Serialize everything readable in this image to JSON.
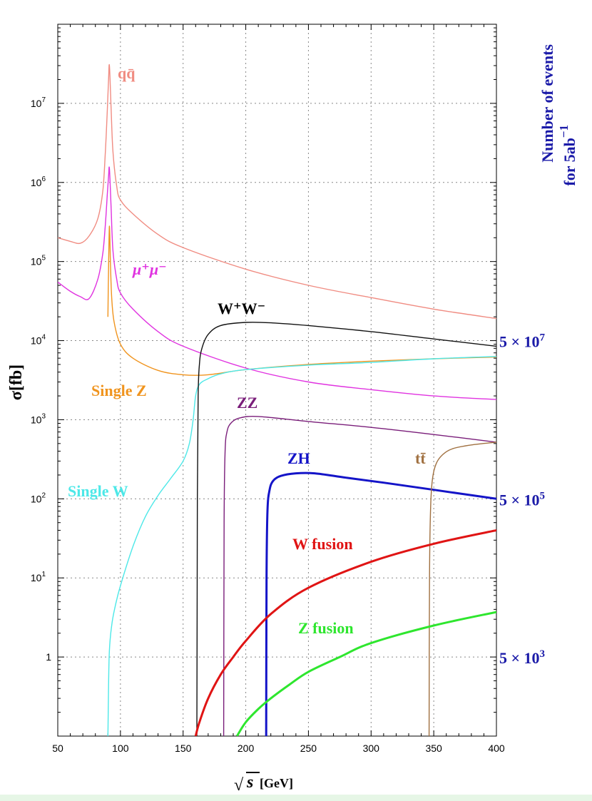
{
  "chart_data": {
    "type": "line",
    "x_scale": "linear",
    "y_scale": "log",
    "xlim": [
      50,
      400
    ],
    "ylim": [
      0.1,
      100000000
    ],
    "x_ticks": [
      50,
      100,
      150,
      200,
      250,
      300,
      350,
      400
    ],
    "x_tick_labels": [
      "50",
      "100",
      "150",
      "200",
      "250",
      "300",
      "350",
      "400"
    ],
    "y_ticks": [
      1,
      10,
      100,
      1000,
      10000,
      100000,
      1000000,
      10000000
    ],
    "y_tick_labels": [
      {
        "base": "1",
        "exp": ""
      },
      {
        "base": "10",
        "exp": "1"
      },
      {
        "base": "10",
        "exp": "2"
      },
      {
        "base": "10",
        "exp": "3"
      },
      {
        "base": "10",
        "exp": "4"
      },
      {
        "base": "10",
        "exp": "5"
      },
      {
        "base": "10",
        "exp": "6"
      },
      {
        "base": "10",
        "exp": "7"
      }
    ],
    "ylabel": "σ[fb]",
    "xlabel": {
      "radical": "√",
      "var": "s",
      "unit": " [GeV]"
    },
    "right_axis": {
      "title_line1": "Number of events",
      "title_line2": "for 5ab",
      "title_exp": "−1",
      "color": "#1a1aa8",
      "ticks": [
        {
          "y": 10000,
          "base": "5 × 10",
          "exp": "7"
        },
        {
          "y": 100,
          "base": "5 × 10",
          "exp": "5"
        },
        {
          "y": 1,
          "base": "5 × 10",
          "exp": "3"
        }
      ]
    },
    "grid": true,
    "series": [
      {
        "name": "qqbar",
        "label": "qq̄",
        "color": "#f08c82",
        "width": 1.4,
        "x": [
          50,
          60,
          68,
          75,
          82,
          86,
          88,
          89.5,
          90.5,
          91.2,
          92.5,
          94,
          97,
          100,
          110,
          130,
          150,
          200,
          250,
          300,
          350,
          400
        ],
        "y": [
          200000,
          180000,
          170000,
          210000,
          350000,
          800000,
          2500000,
          8000000,
          20000000,
          30000000,
          9000000,
          2500000,
          900000,
          600000,
          400000,
          220000,
          150000,
          80000,
          50000,
          35000,
          25000,
          19000
        ]
      },
      {
        "name": "mumu",
        "label": "μ⁺μ⁻",
        "color": "#e033e0",
        "width": 1.4,
        "x": [
          50,
          60,
          68,
          75,
          82,
          86,
          88,
          89.5,
          90.5,
          91.2,
          92.5,
          94,
          97,
          100,
          110,
          130,
          150,
          200,
          250,
          300,
          350,
          400
        ],
        "y": [
          55000,
          42000,
          36000,
          34000,
          60000,
          130000,
          300000,
          700000,
          1200000,
          1500000,
          500000,
          140000,
          60000,
          40000,
          25000,
          13000,
          8500,
          4500,
          3000,
          2400,
          2000,
          1800
        ]
      },
      {
        "name": "singleZ",
        "label": "Single Z",
        "color": "#f0941e",
        "width": 1.4,
        "x": [
          90,
          90.5,
          91.2,
          92,
          93,
          95,
          100,
          110,
          130,
          150,
          170,
          200,
          250,
          300,
          350,
          400
        ],
        "y": [
          20000,
          80000,
          280000,
          100000,
          35000,
          17000,
          9000,
          6000,
          4200,
          3700,
          3700,
          4300,
          5000,
          5500,
          5900,
          6200
        ]
      },
      {
        "name": "singleW",
        "label": "Single W",
        "color": "#4de8e8",
        "width": 1.4,
        "x": [
          90,
          91,
          93,
          96,
          100,
          110,
          120,
          130,
          140,
          150,
          155,
          158,
          160,
          163,
          170,
          180,
          200,
          250,
          300,
          350,
          400
        ],
        "y": [
          0.1,
          1,
          2.5,
          4.5,
          8,
          25,
          60,
          110,
          180,
          300,
          500,
          1000,
          2000,
          2800,
          3300,
          3800,
          4300,
          4900,
          5300,
          5900,
          6300
        ]
      },
      {
        "name": "WW",
        "label": "W⁺W⁻",
        "color": "#111111",
        "width": 1.4,
        "x": [
          161,
          161.4,
          162,
          163,
          165,
          170,
          180,
          200,
          220,
          250,
          300,
          350,
          400
        ],
        "y": [
          0.1,
          100,
          2000,
          5000,
          8000,
          12000,
          15500,
          17000,
          16800,
          15500,
          13000,
          10500,
          8500
        ]
      },
      {
        "name": "ZZ",
        "label": "ZZ",
        "color": "#7a1e7a",
        "width": 1.4,
        "x": [
          182.4,
          182.7,
          183.5,
          185,
          188,
          195,
          210,
          250,
          300,
          350,
          400
        ],
        "y": [
          0.1,
          50,
          400,
          700,
          900,
          1050,
          1100,
          950,
          800,
          650,
          520
        ]
      },
      {
        "name": "ZH",
        "label": "ZH",
        "color": "#1414c8",
        "width": 3,
        "x": [
          216.3,
          216.6,
          217.3,
          219,
          222,
          228,
          240,
          255,
          280,
          310,
          350,
          400
        ],
        "y": [
          0.1,
          10,
          70,
          130,
          170,
          195,
          210,
          210,
          185,
          160,
          130,
          100
        ]
      },
      {
        "name": "tt",
        "label": "tt̄",
        "color": "#a07040",
        "width": 1.4,
        "x": [
          346.3,
          346.6,
          347.5,
          349,
          352,
          357,
          365,
          380,
          400
        ],
        "y": [
          0.1,
          10,
          80,
          180,
          280,
          360,
          430,
          480,
          520
        ]
      },
      {
        "name": "Wfusion",
        "label": "W fusion",
        "color": "#e01414",
        "width": 3,
        "x": [
          160,
          163,
          170,
          180,
          190,
          200,
          220,
          250,
          300,
          350,
          400
        ],
        "y": [
          0.1,
          0.15,
          0.3,
          0.6,
          1.0,
          1.6,
          3.5,
          7.5,
          16,
          27,
          40
        ]
      },
      {
        "name": "Zfusion",
        "label": "Z fusion",
        "color": "#2ee62e",
        "width": 3,
        "x": [
          193,
          200,
          210,
          220,
          235,
          250,
          275,
          300,
          350,
          400
        ],
        "y": [
          0.1,
          0.15,
          0.22,
          0.3,
          0.45,
          0.65,
          1.0,
          1.5,
          2.5,
          3.7
        ]
      }
    ],
    "annotations": [
      {
        "series": "qqbar",
        "text": "qq̄"
      },
      {
        "series": "mumu",
        "text": "μ⁺μ⁻"
      },
      {
        "series": "WW",
        "text": "W⁺W⁻"
      },
      {
        "series": "singleZ",
        "text": "Single Z"
      },
      {
        "series": "ZZ",
        "text": "ZZ"
      },
      {
        "series": "ZH",
        "text": "ZH"
      },
      {
        "series": "tt",
        "text": "tt̄"
      },
      {
        "series": "singleW",
        "text": "Single W"
      },
      {
        "series": "Wfusion",
        "text": "W fusion"
      },
      {
        "series": "Zfusion",
        "text": "Z fusion"
      }
    ]
  }
}
